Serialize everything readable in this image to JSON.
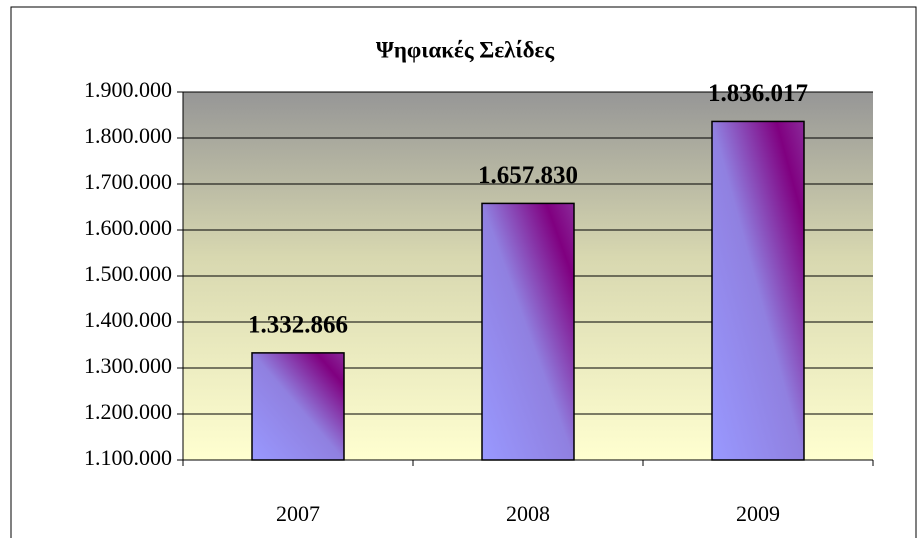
{
  "chart_data": {
    "type": "bar",
    "title": "Ψηφιακές Σελίδες",
    "categories": [
      "2007",
      "2008",
      "2009"
    ],
    "values": [
      1332866,
      1657830,
      1836017
    ],
    "value_labels": [
      "1.332.866",
      "1.657.830",
      "1.836.017"
    ],
    "ylim": [
      1100000,
      1900000
    ],
    "yticks": [
      {
        "value": 1100000,
        "label": "1.100.000"
      },
      {
        "value": 1200000,
        "label": "1.200.000"
      },
      {
        "value": 1300000,
        "label": "1.300.000"
      },
      {
        "value": 1400000,
        "label": "1.400.000"
      },
      {
        "value": 1500000,
        "label": "1.500.000"
      },
      {
        "value": 1600000,
        "label": "1.600.000"
      },
      {
        "value": 1700000,
        "label": "1.700.000"
      },
      {
        "value": 1800000,
        "label": "1.800.000"
      },
      {
        "value": 1900000,
        "label": "1.900.000"
      }
    ],
    "grid": true
  }
}
